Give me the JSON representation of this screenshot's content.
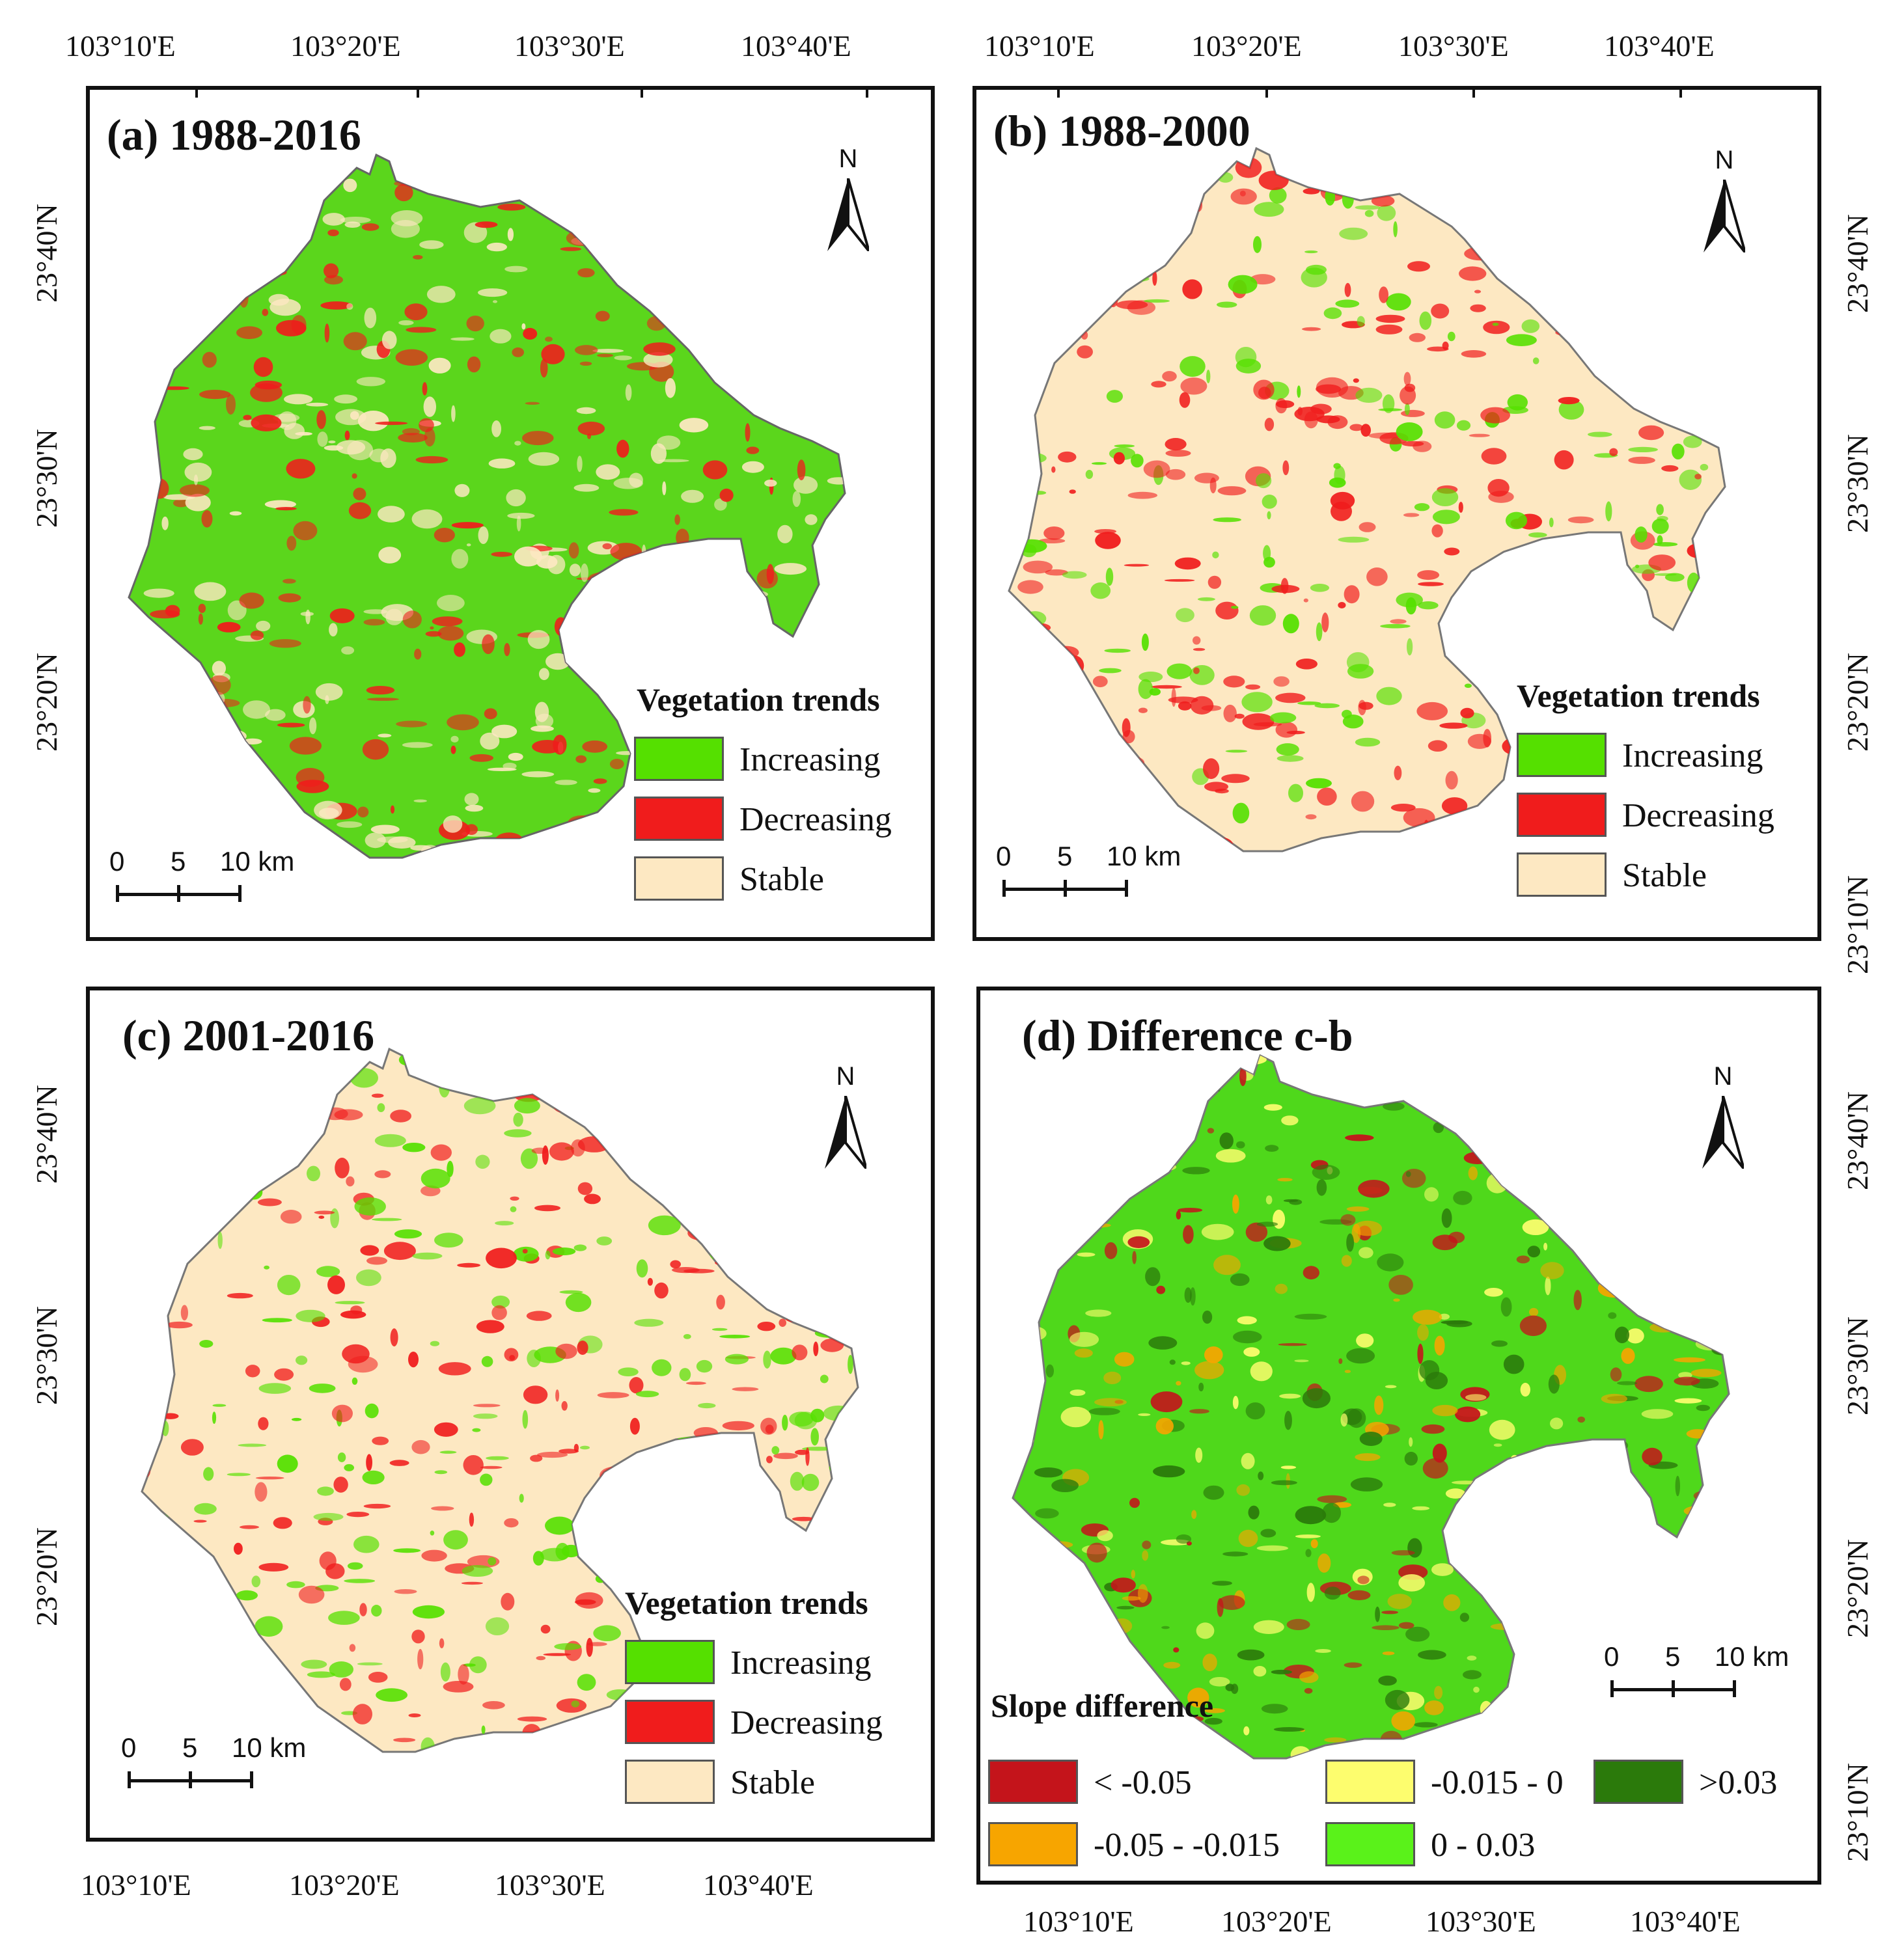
{
  "lon_labels": [
    "103°10'E",
    "103°20'E",
    "103°30'E",
    "103°40'E"
  ],
  "lat_labels": [
    "23°40'N",
    "23°30'N",
    "23°20'N",
    "23°10'N"
  ],
  "north_label": "N",
  "legend_title_trends": "Vegetation trends",
  "legend_trends": [
    {
      "label": "Increasing",
      "color": "#55e000"
    },
    {
      "label": "Decreasing",
      "color": "#f01c1c"
    },
    {
      "label": "Stable",
      "color": "#fde8c2"
    }
  ],
  "legend_title_slope": "Slope difference",
  "legend_slope": [
    {
      "label": "< -0.05",
      "color": "#c4141b"
    },
    {
      "label": "-0.05 - -0.015",
      "color": "#f7a500"
    },
    {
      "label": "-0.015 - 0",
      "color": "#fdfd6e"
    },
    {
      "label": "0 - 0.03",
      "color": "#5af21a"
    },
    {
      "label": ">0.03",
      "color": "#2b7a0b"
    }
  ],
  "scale": {
    "zero": "0",
    "mid": "5",
    "end": "10 km"
  },
  "panels": [
    {
      "title": "(a) 1988-2016",
      "base": "#5bd61c",
      "spots": [
        "#fde8c2",
        "#f01c1c"
      ]
    },
    {
      "title": "(b) 1988-2000",
      "base": "#fde8c2",
      "spots": [
        "#55e000",
        "#f01c1c"
      ]
    },
    {
      "title": "(c) 2001-2016",
      "base": "#fde8c2",
      "spots": [
        "#55e000",
        "#f01c1c"
      ]
    },
    {
      "title": "(d) Difference c-b",
      "base": "#4fd81b",
      "spots": [
        "#2b7a0b",
        "#c4141b",
        "#f7a500",
        "#fdfd6e"
      ]
    }
  ]
}
